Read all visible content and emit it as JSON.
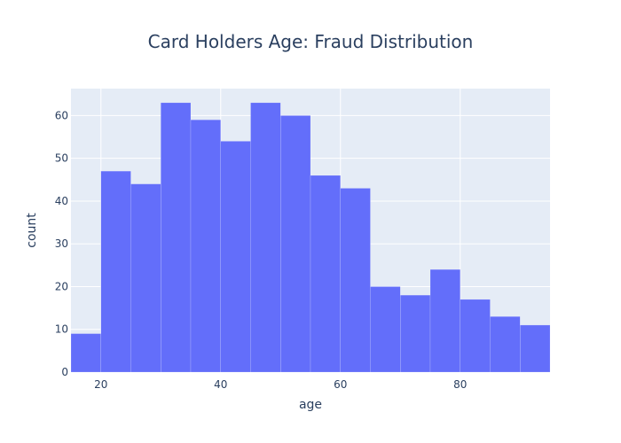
{
  "chart_data": {
    "type": "bar",
    "title": "Card Holders Age: Fraud Distribution",
    "xlabel": "age",
    "ylabel": "count",
    "bin_edges": [
      15,
      20,
      25,
      30,
      35,
      40,
      45,
      50,
      55,
      60,
      65,
      70,
      75,
      80,
      85,
      90,
      95
    ],
    "values": [
      9,
      47,
      44,
      63,
      59,
      54,
      63,
      60,
      46,
      43,
      20,
      18,
      24,
      17,
      13,
      11
    ],
    "xlim": [
      15,
      95
    ],
    "ylim": [
      0,
      66.3
    ],
    "x_ticks": [
      20,
      40,
      60,
      80
    ],
    "y_ticks": [
      0,
      10,
      20,
      30,
      40,
      50,
      60
    ],
    "grid": true,
    "bar_color": "#636efa",
    "plot_bg": "#e5ecf6",
    "grid_color": "#ffffff",
    "text_color": "#2a3f5f"
  }
}
